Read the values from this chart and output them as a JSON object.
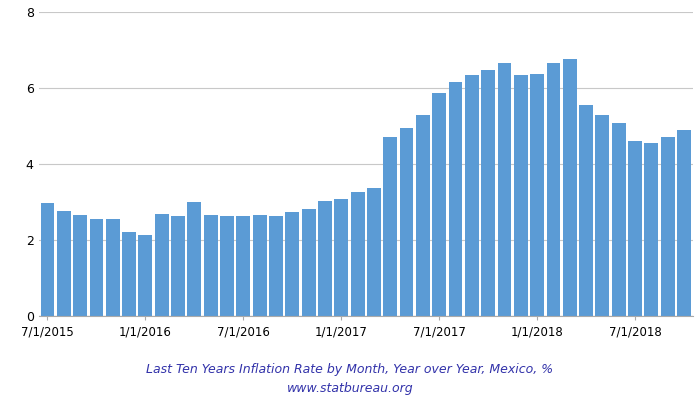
{
  "values": [
    2.98,
    2.77,
    2.65,
    2.55,
    2.55,
    2.21,
    2.13,
    2.69,
    2.63,
    2.99,
    2.65,
    2.62,
    2.62,
    2.65,
    2.62,
    2.73,
    2.82,
    3.02,
    3.08,
    3.26,
    3.36,
    4.72,
    4.95,
    5.29,
    5.86,
    6.17,
    6.35,
    6.48,
    6.66,
    6.35,
    6.37,
    6.66,
    6.77,
    5.55,
    5.28,
    5.09,
    4.61,
    4.55,
    4.72,
    4.9
  ],
  "labels": [
    "7/1/2015",
    "1/1/2016",
    "7/1/2016",
    "1/1/2017",
    "7/1/2017",
    "1/1/2018",
    "7/1/2018"
  ],
  "tick_positions": [
    0,
    6,
    12,
    18,
    24,
    30,
    36
  ],
  "bar_color": "#5b9bd5",
  "title": "Last Ten Years Inflation Rate by Month, Year over Year, Mexico, %",
  "subtitle": "www.statbureau.org",
  "ylim": [
    0,
    8
  ],
  "yticks": [
    0,
    2,
    4,
    6,
    8
  ],
  "title_fontsize": 9,
  "subtitle_fontsize": 9,
  "background_color": "#ffffff",
  "grid_color": "#c8c8c8"
}
